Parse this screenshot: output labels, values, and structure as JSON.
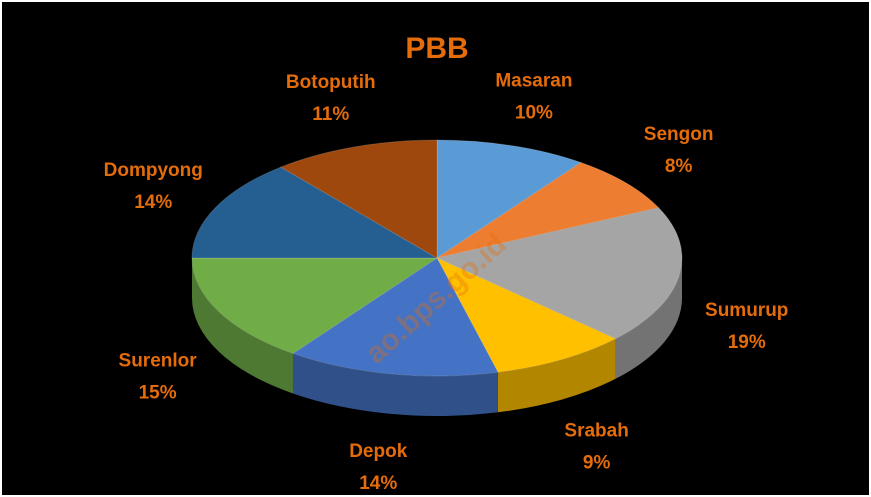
{
  "chart_data": {
    "type": "pie",
    "title": "PBB",
    "categories": [
      "Masaran",
      "Sengon",
      "Sumurup",
      "Srabah",
      "Depok",
      "Surenlor",
      "Dompyong",
      "Botoputih"
    ],
    "values": [
      10,
      8,
      19,
      9,
      14,
      15,
      14,
      11
    ],
    "value_labels": [
      "10%",
      "8%",
      "19%",
      "9%",
      "14%",
      "15%",
      "14%",
      "11%"
    ],
    "colors": [
      "#5b9bd5",
      "#ed7d31",
      "#a5a5a5",
      "#ffc000",
      "#4472c4",
      "#70ad47",
      "#255e91",
      "#9e480e"
    ],
    "watermark": "ao.bps.go.id"
  }
}
